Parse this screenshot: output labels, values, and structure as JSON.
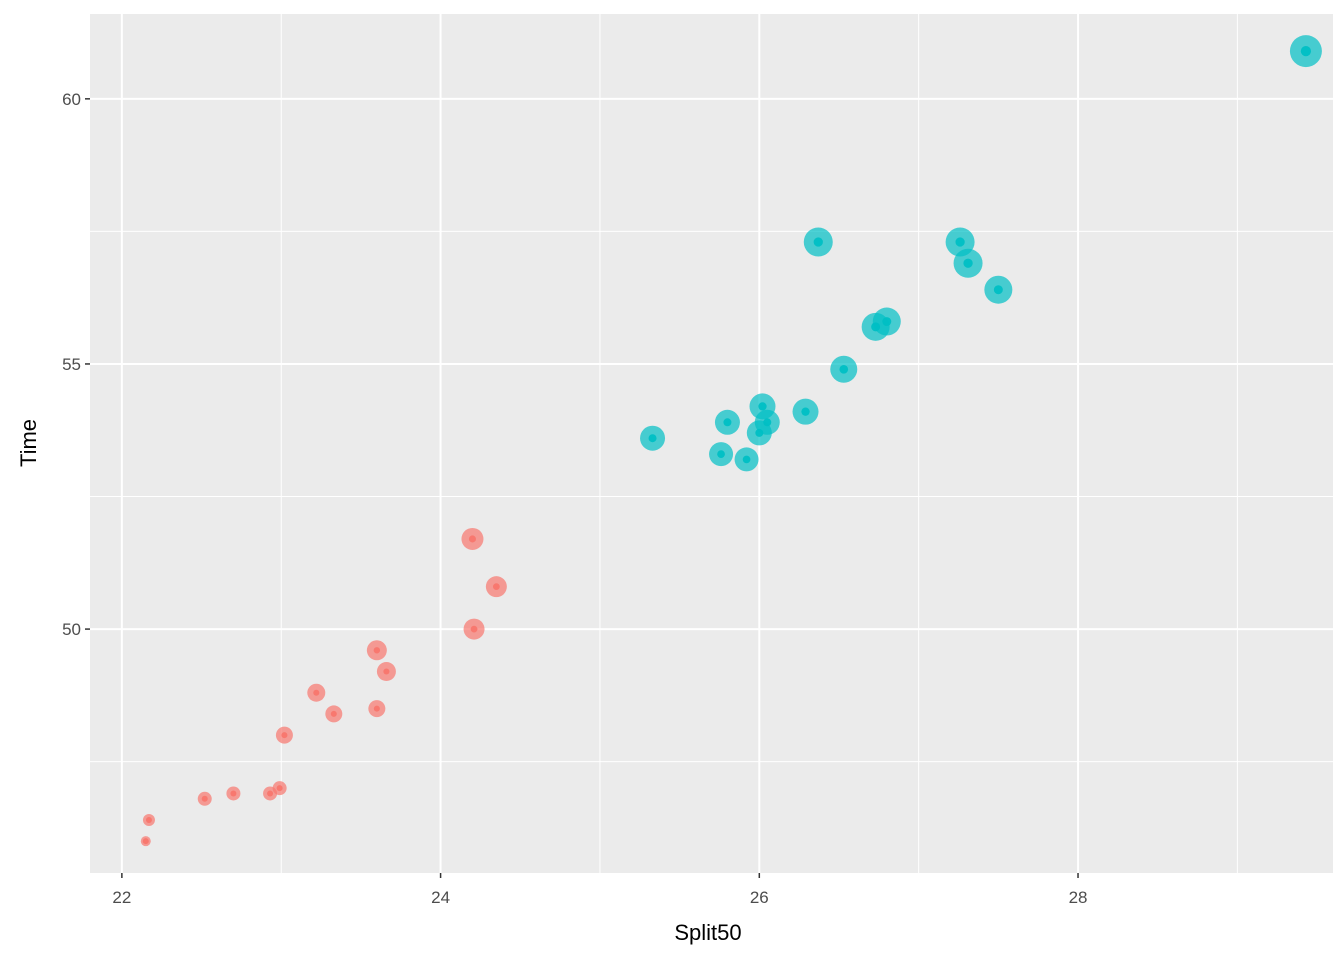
{
  "chart_data": {
    "type": "scatter",
    "title": "",
    "xlabel": "Split50",
    "ylabel": "Time",
    "xlim": [
      21.8,
      29.6
    ],
    "ylim": [
      45.4,
      61.6
    ],
    "x_ticks": [
      22,
      24,
      26,
      28
    ],
    "y_ticks": [
      50,
      55,
      60
    ],
    "x_tick_labels": [
      "22",
      "24",
      "26",
      "28"
    ],
    "y_tick_labels": [
      "50",
      "55",
      "60"
    ],
    "x_minor_ticks": [
      23,
      25,
      27,
      29
    ],
    "y_minor_ticks": [
      47.5,
      52.5,
      57.5
    ],
    "grid": true,
    "legend": "none",
    "colors": {
      "panel_bg": "#EBEBEB",
      "grid": "#FFFFFF",
      "group_a": "#F8766D",
      "group_b": "#00BFC4"
    },
    "series": [
      {
        "color": "#F8766D",
        "points": [
          {
            "x": 22.15,
            "y": 46.0,
            "size": 5.0
          },
          {
            "x": 22.17,
            "y": 46.4,
            "size": 6.0
          },
          {
            "x": 22.52,
            "y": 46.8,
            "size": 7.0
          },
          {
            "x": 22.7,
            "y": 46.9,
            "size": 7.0
          },
          {
            "x": 22.93,
            "y": 46.9,
            "size": 7.0
          },
          {
            "x": 22.99,
            "y": 47.0,
            "size": 7.0
          },
          {
            "x": 23.02,
            "y": 48.0,
            "size": 8.5
          },
          {
            "x": 23.22,
            "y": 48.8,
            "size": 9.0
          },
          {
            "x": 23.33,
            "y": 48.4,
            "size": 8.5
          },
          {
            "x": 23.6,
            "y": 48.5,
            "size": 8.5
          },
          {
            "x": 23.6,
            "y": 49.6,
            "size": 10.0
          },
          {
            "x": 23.66,
            "y": 49.2,
            "size": 9.5
          },
          {
            "x": 24.2,
            "y": 51.7,
            "size": 11.0
          },
          {
            "x": 24.21,
            "y": 50.0,
            "size": 10.5
          },
          {
            "x": 24.35,
            "y": 50.8,
            "size": 10.5
          }
        ]
      },
      {
        "color": "#00BFC4",
        "points": [
          {
            "x": 25.33,
            "y": 53.6,
            "size": 12.5
          },
          {
            "x": 25.76,
            "y": 53.3,
            "size": 12.0
          },
          {
            "x": 25.8,
            "y": 53.9,
            "size": 12.5
          },
          {
            "x": 25.92,
            "y": 53.2,
            "size": 12.0
          },
          {
            "x": 26.0,
            "y": 53.7,
            "size": 12.5
          },
          {
            "x": 26.02,
            "y": 54.2,
            "size": 13.0
          },
          {
            "x": 26.05,
            "y": 53.9,
            "size": 12.5
          },
          {
            "x": 26.29,
            "y": 54.1,
            "size": 13.0
          },
          {
            "x": 26.37,
            "y": 57.3,
            "size": 14.5
          },
          {
            "x": 26.53,
            "y": 54.9,
            "size": 13.5
          },
          {
            "x": 26.73,
            "y": 55.7,
            "size": 14.0
          },
          {
            "x": 26.8,
            "y": 55.8,
            "size": 14.0
          },
          {
            "x": 27.26,
            "y": 57.3,
            "size": 14.5
          },
          {
            "x": 27.31,
            "y": 56.9,
            "size": 14.5
          },
          {
            "x": 27.5,
            "y": 56.4,
            "size": 14.0
          },
          {
            "x": 29.43,
            "y": 60.9,
            "size": 16.0
          }
        ]
      }
    ]
  }
}
